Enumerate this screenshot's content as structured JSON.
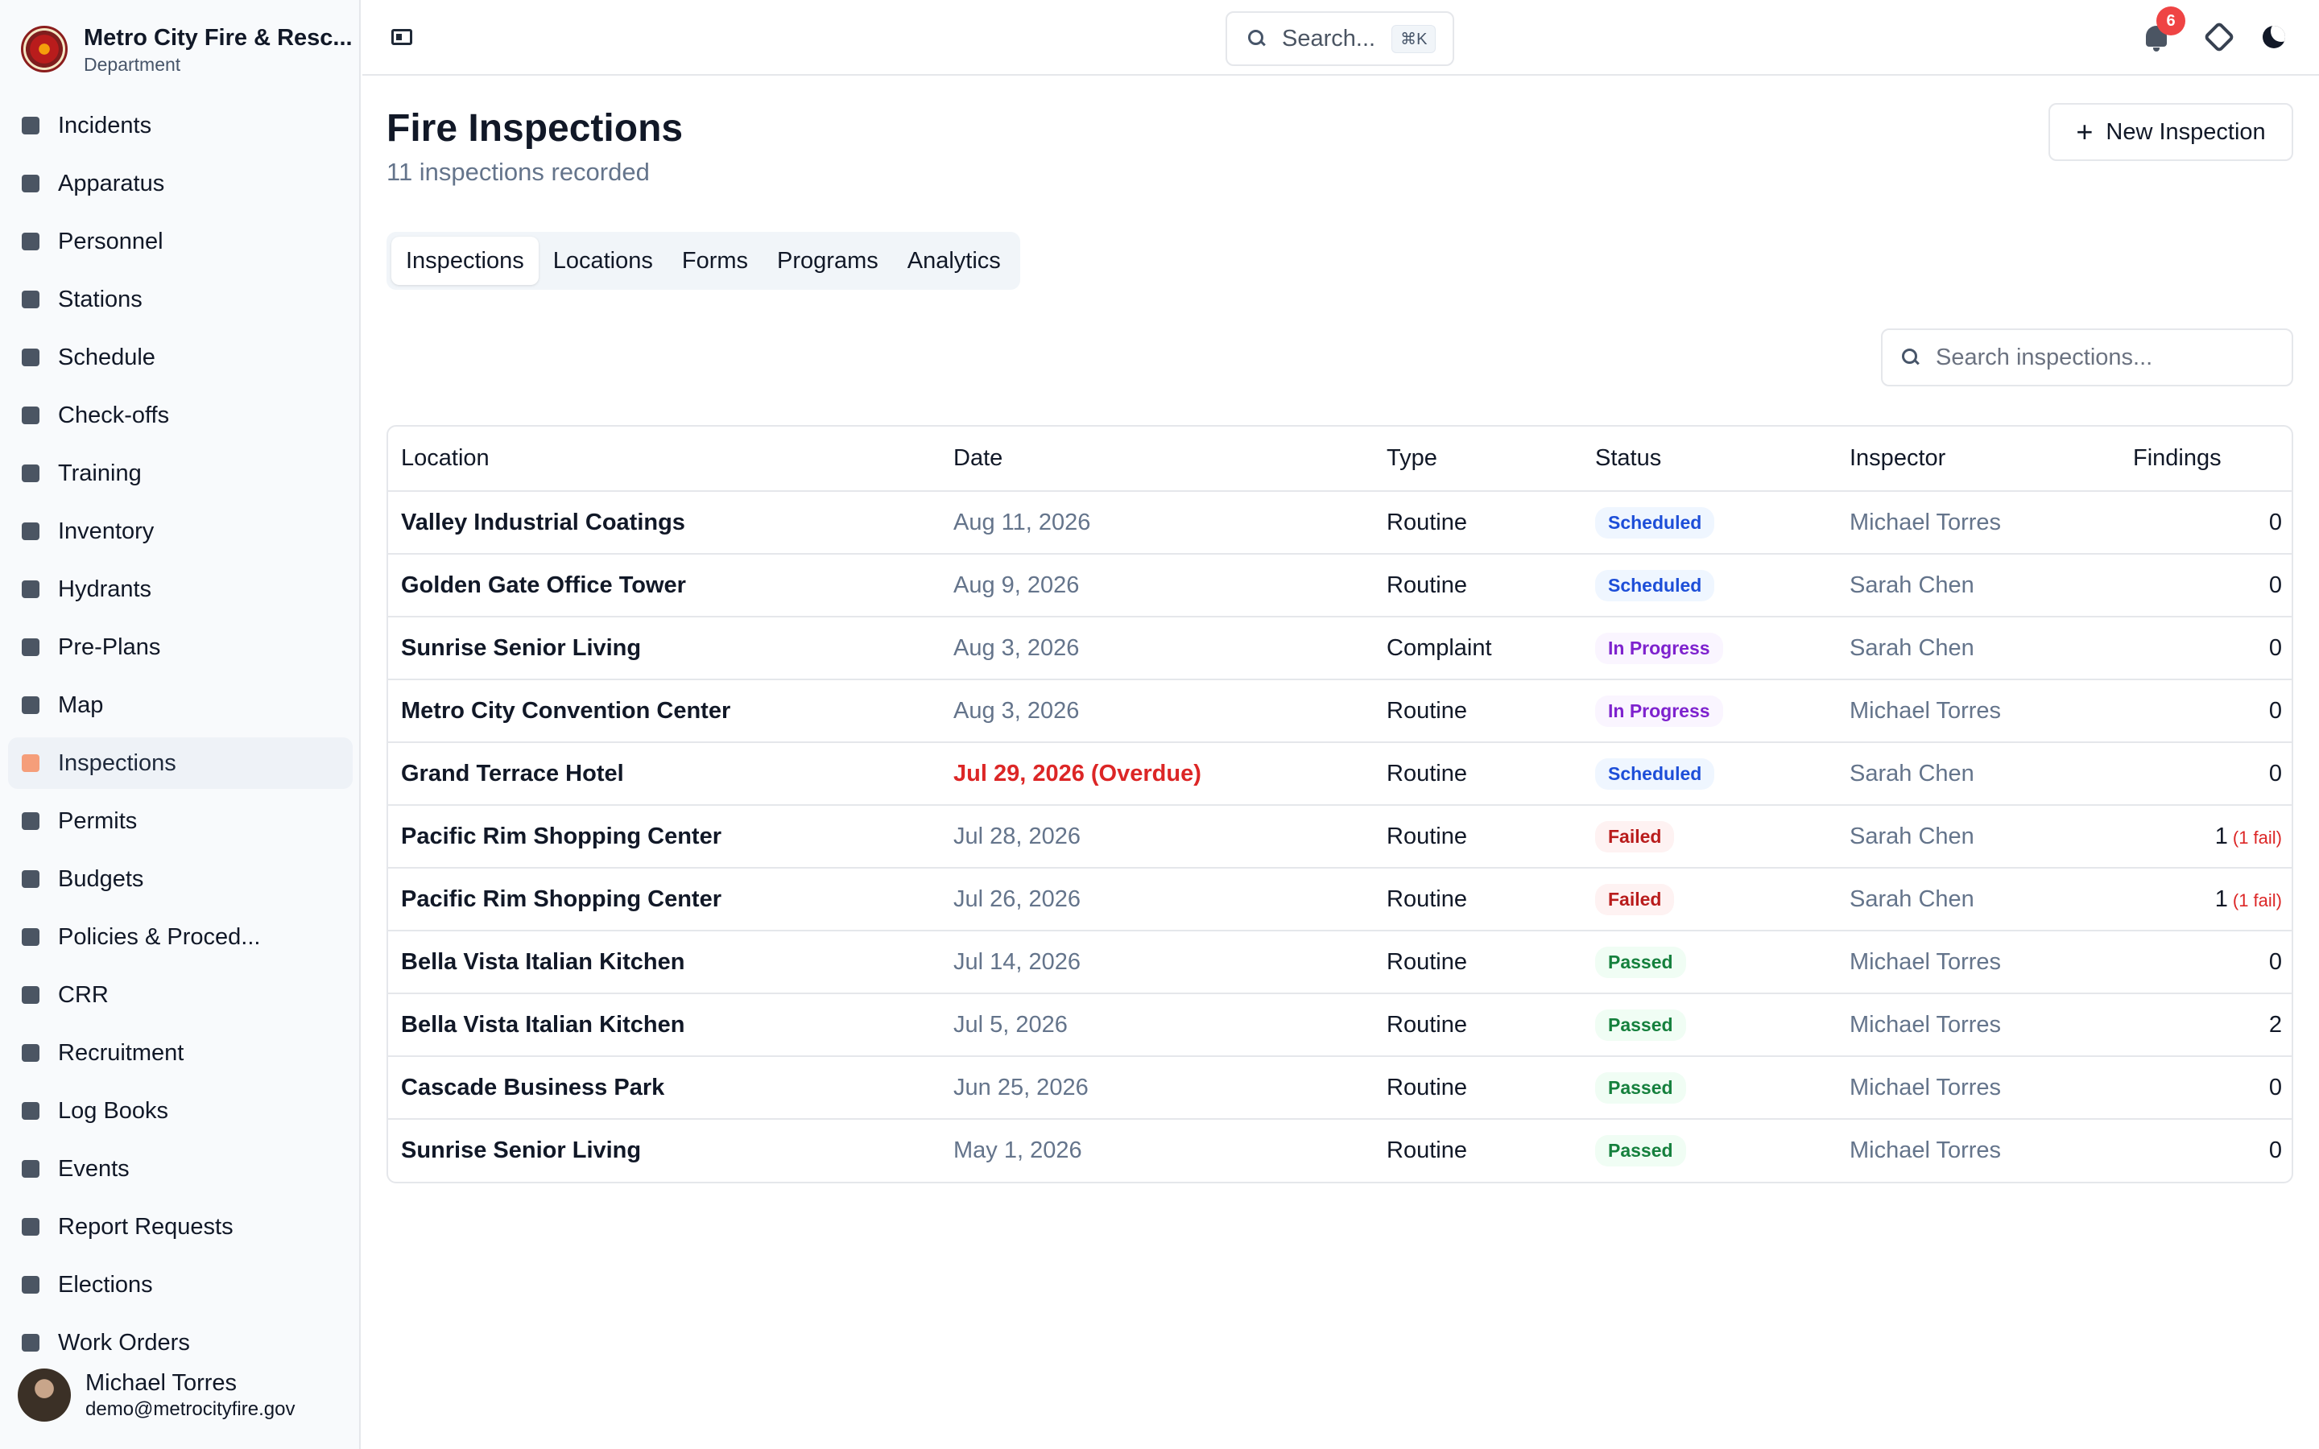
{
  "org": {
    "name": "Metro City Fire & Resc...",
    "subtitle": "Department"
  },
  "sidebar": {
    "items": [
      {
        "label": "Incidents",
        "icon": "fire-truck-icon"
      },
      {
        "label": "Apparatus",
        "icon": "truck-icon"
      },
      {
        "label": "Personnel",
        "icon": "id-card-icon"
      },
      {
        "label": "Stations",
        "icon": "building-icon"
      },
      {
        "label": "Schedule",
        "icon": "calendar-icon"
      },
      {
        "label": "Check-offs",
        "icon": "clipboard-check-icon"
      },
      {
        "label": "Training",
        "icon": "graduation-cap-icon"
      },
      {
        "label": "Inventory",
        "icon": "wrench-icon"
      },
      {
        "label": "Hydrants",
        "icon": "hydrant-icon"
      },
      {
        "label": "Pre-Plans",
        "icon": "file-plan-icon"
      },
      {
        "label": "Map",
        "icon": "map-icon"
      },
      {
        "label": "Inspections",
        "icon": "clipboard-icon",
        "active": true
      },
      {
        "label": "Permits",
        "icon": "permit-icon"
      },
      {
        "label": "Budgets",
        "icon": "piggy-bank-icon"
      },
      {
        "label": "Policies & Proced...",
        "icon": "book-icon"
      },
      {
        "label": "CRR",
        "icon": "megaphone-icon"
      },
      {
        "label": "Recruitment",
        "icon": "handshake-icon"
      },
      {
        "label": "Log Books",
        "icon": "books-icon"
      },
      {
        "label": "Events",
        "icon": "calendar-star-icon"
      },
      {
        "label": "Report Requests",
        "icon": "report-icon"
      },
      {
        "label": "Elections",
        "icon": "ballot-box-icon"
      },
      {
        "label": "Work Orders",
        "icon": "tools-icon"
      }
    ]
  },
  "user": {
    "name": "Michael Torres",
    "email": "demo@metrocityfire.gov"
  },
  "topbar": {
    "search_placeholder": "Search...",
    "shortcut": "⌘K",
    "notification_count": "6"
  },
  "page": {
    "title": "Fire Inspections",
    "subtitle": "11 inspections recorded",
    "new_button": "New Inspection",
    "search_placeholder": "Search inspections..."
  },
  "tabs": [
    {
      "label": "Inspections",
      "active": true
    },
    {
      "label": "Locations"
    },
    {
      "label": "Forms"
    },
    {
      "label": "Programs"
    },
    {
      "label": "Analytics"
    }
  ],
  "table": {
    "headers": [
      "Location",
      "Date",
      "Type",
      "Status",
      "Inspector",
      "Findings"
    ],
    "rows": [
      {
        "location": "Valley Industrial Coatings",
        "date": "Aug 11, 2026",
        "type": "Routine",
        "status": "Scheduled",
        "inspector": "Michael Torres",
        "findings": "0",
        "note": ""
      },
      {
        "location": "Golden Gate Office Tower",
        "date": "Aug 9, 2026",
        "type": "Routine",
        "status": "Scheduled",
        "inspector": "Sarah Chen",
        "findings": "0",
        "note": ""
      },
      {
        "location": "Sunrise Senior Living",
        "date": "Aug 3, 2026",
        "type": "Complaint",
        "status": "In Progress",
        "inspector": "Sarah Chen",
        "findings": "0",
        "note": ""
      },
      {
        "location": "Metro City Convention Center",
        "date": "Aug 3, 2026",
        "type": "Routine",
        "status": "In Progress",
        "inspector": "Michael Torres",
        "findings": "0",
        "note": ""
      },
      {
        "location": "Grand Terrace Hotel",
        "date": "Jul 29, 2026 (Overdue)",
        "type": "Routine",
        "status": "Scheduled",
        "inspector": "Sarah Chen",
        "findings": "0",
        "note": "",
        "overdue": true
      },
      {
        "location": "Pacific Rim Shopping Center",
        "date": "Jul 28, 2026",
        "type": "Routine",
        "status": "Failed",
        "inspector": "Sarah Chen",
        "findings": "1",
        "note": "(1 fail)"
      },
      {
        "location": "Pacific Rim Shopping Center",
        "date": "Jul 26, 2026",
        "type": "Routine",
        "status": "Failed",
        "inspector": "Sarah Chen",
        "findings": "1",
        "note": "(1 fail)"
      },
      {
        "location": "Bella Vista Italian Kitchen",
        "date": "Jul 14, 2026",
        "type": "Routine",
        "status": "Passed",
        "inspector": "Michael Torres",
        "findings": "0",
        "note": ""
      },
      {
        "location": "Bella Vista Italian Kitchen",
        "date": "Jul 5, 2026",
        "type": "Routine",
        "status": "Passed",
        "inspector": "Michael Torres",
        "findings": "2",
        "note": ""
      },
      {
        "location": "Cascade Business Park",
        "date": "Jun 25, 2026",
        "type": "Routine",
        "status": "Passed",
        "inspector": "Michael Torres",
        "findings": "0",
        "note": ""
      },
      {
        "location": "Sunrise Senior Living",
        "date": "May 1, 2026",
        "type": "Routine",
        "status": "Passed",
        "inspector": "Michael Torres",
        "findings": "0",
        "note": ""
      }
    ]
  },
  "colors": {
    "accent": "#f59e7a",
    "overdue": "#dc2626",
    "scheduled": "#1d4ed8",
    "in_progress": "#7e22ce",
    "failed": "#b91c1c",
    "passed": "#15803d",
    "notification": "#ef4444"
  }
}
